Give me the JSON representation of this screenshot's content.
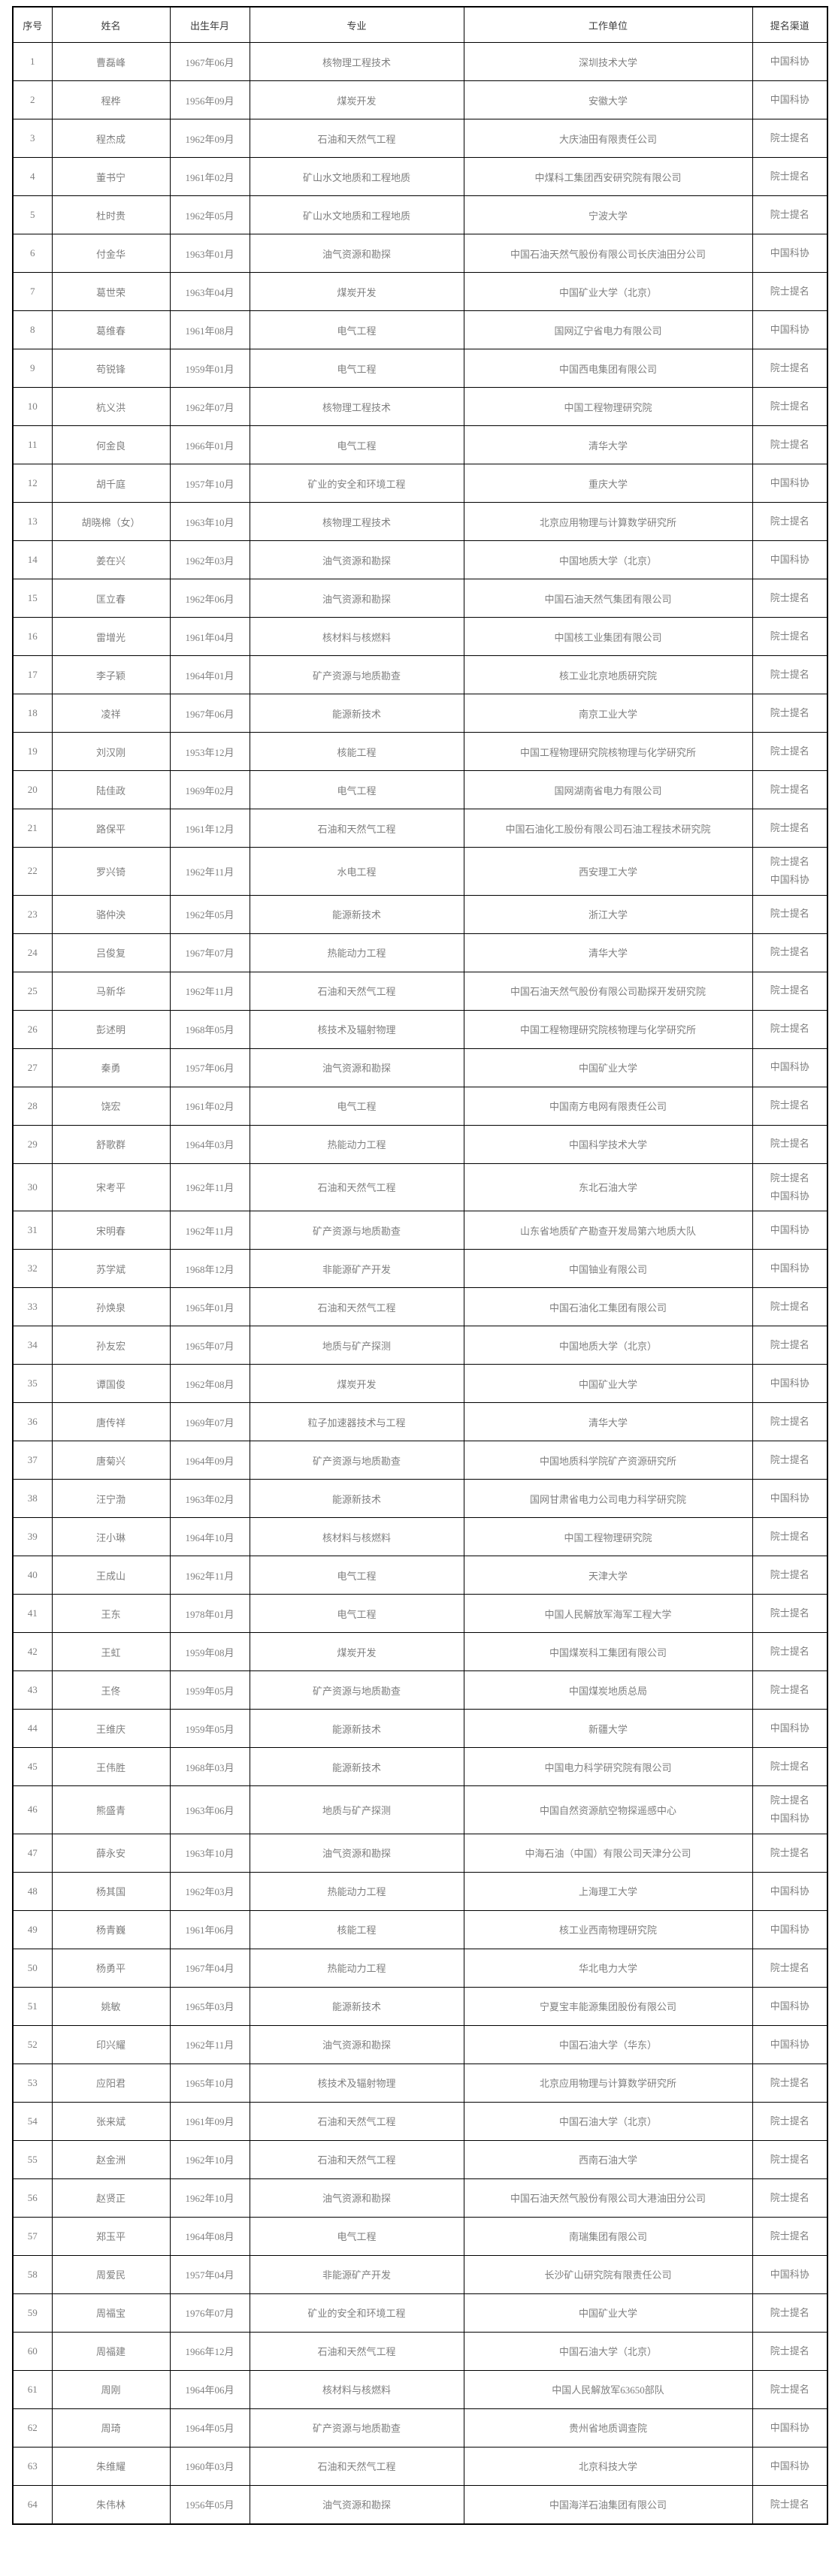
{
  "colors": {
    "background": "#ffffff",
    "grid_border": "#000000",
    "header_text": "#3c3c3c",
    "body_text": "#7f7f7f"
  },
  "table": {
    "columns": [
      "序号",
      "姓名",
      "出生年月",
      "专业",
      "工作单位",
      "提名渠道"
    ],
    "rows": [
      {
        "no": "1",
        "name": "曹磊峰",
        "birth": "1967年06月",
        "major": "核物理工程技术",
        "org": "深圳技术大学",
        "channel": [
          "中国科协"
        ]
      },
      {
        "no": "2",
        "name": "程桦",
        "birth": "1956年09月",
        "major": "煤炭开发",
        "org": "安徽大学",
        "channel": [
          "中国科协"
        ]
      },
      {
        "no": "3",
        "name": "程杰成",
        "birth": "1962年09月",
        "major": "石油和天然气工程",
        "org": "大庆油田有限责任公司",
        "channel": [
          "院士提名"
        ]
      },
      {
        "no": "4",
        "name": "董书宁",
        "birth": "1961年02月",
        "major": "矿山水文地质和工程地质",
        "org": "中煤科工集团西安研究院有限公司",
        "channel": [
          "院士提名"
        ]
      },
      {
        "no": "5",
        "name": "杜时贵",
        "birth": "1962年05月",
        "major": "矿山水文地质和工程地质",
        "org": "宁波大学",
        "channel": [
          "院士提名"
        ]
      },
      {
        "no": "6",
        "name": "付金华",
        "birth": "1963年01月",
        "major": "油气资源和勘探",
        "org": "中国石油天然气股份有限公司长庆油田分公司",
        "channel": [
          "中国科协"
        ]
      },
      {
        "no": "7",
        "name": "葛世荣",
        "birth": "1963年04月",
        "major": "煤炭开发",
        "org": "中国矿业大学（北京）",
        "channel": [
          "院士提名"
        ]
      },
      {
        "no": "8",
        "name": "葛维春",
        "birth": "1961年08月",
        "major": "电气工程",
        "org": "国网辽宁省电力有限公司",
        "channel": [
          "中国科协"
        ]
      },
      {
        "no": "9",
        "name": "苟锐锋",
        "birth": "1959年01月",
        "major": "电气工程",
        "org": "中国西电集团有限公司",
        "channel": [
          "院士提名"
        ]
      },
      {
        "no": "10",
        "name": "杭义洪",
        "birth": "1962年07月",
        "major": "核物理工程技术",
        "org": "中国工程物理研究院",
        "channel": [
          "院士提名"
        ]
      },
      {
        "no": "11",
        "name": "何金良",
        "birth": "1966年01月",
        "major": "电气工程",
        "org": "清华大学",
        "channel": [
          "院士提名"
        ]
      },
      {
        "no": "12",
        "name": "胡千庭",
        "birth": "1957年10月",
        "major": "矿业的安全和环境工程",
        "org": "重庆大学",
        "channel": [
          "中国科协"
        ]
      },
      {
        "no": "13",
        "name": "胡晓棉（女）",
        "birth": "1963年10月",
        "major": "核物理工程技术",
        "org": "北京应用物理与计算数学研究所",
        "channel": [
          "院士提名"
        ]
      },
      {
        "no": "14",
        "name": "姜在兴",
        "birth": "1962年03月",
        "major": "油气资源和勘探",
        "org": "中国地质大学（北京）",
        "channel": [
          "中国科协"
        ]
      },
      {
        "no": "15",
        "name": "匡立春",
        "birth": "1962年06月",
        "major": "油气资源和勘探",
        "org": "中国石油天然气集团有限公司",
        "channel": [
          "院士提名"
        ]
      },
      {
        "no": "16",
        "name": "雷增光",
        "birth": "1961年04月",
        "major": "核材料与核燃料",
        "org": "中国核工业集团有限公司",
        "channel": [
          "院士提名"
        ]
      },
      {
        "no": "17",
        "name": "李子颖",
        "birth": "1964年01月",
        "major": "矿产资源与地质勘查",
        "org": "核工业北京地质研究院",
        "channel": [
          "院士提名"
        ]
      },
      {
        "no": "18",
        "name": "凌祥",
        "birth": "1967年06月",
        "major": "能源新技术",
        "org": "南京工业大学",
        "channel": [
          "院士提名"
        ]
      },
      {
        "no": "19",
        "name": "刘汉刚",
        "birth": "1953年12月",
        "major": "核能工程",
        "org": "中国工程物理研究院核物理与化学研究所",
        "channel": [
          "院士提名"
        ]
      },
      {
        "no": "20",
        "name": "陆佳政",
        "birth": "1969年02月",
        "major": "电气工程",
        "org": "国网湖南省电力有限公司",
        "channel": [
          "院士提名"
        ]
      },
      {
        "no": "21",
        "name": "路保平",
        "birth": "1961年12月",
        "major": "石油和天然气工程",
        "org": "中国石油化工股份有限公司石油工程技术研究院",
        "channel": [
          "院士提名"
        ]
      },
      {
        "no": "22",
        "name": "罗兴锜",
        "birth": "1962年11月",
        "major": "水电工程",
        "org": "西安理工大学",
        "channel": [
          "院士提名",
          "中国科协"
        ]
      },
      {
        "no": "23",
        "name": "骆仲泱",
        "birth": "1962年05月",
        "major": "能源新技术",
        "org": "浙江大学",
        "channel": [
          "院士提名"
        ]
      },
      {
        "no": "24",
        "name": "吕俊复",
        "birth": "1967年07月",
        "major": "热能动力工程",
        "org": "清华大学",
        "channel": [
          "院士提名"
        ]
      },
      {
        "no": "25",
        "name": "马新华",
        "birth": "1962年11月",
        "major": "石油和天然气工程",
        "org": "中国石油天然气股份有限公司勘探开发研究院",
        "channel": [
          "院士提名"
        ]
      },
      {
        "no": "26",
        "name": "彭述明",
        "birth": "1968年05月",
        "major": "核技术及辐射物理",
        "org": "中国工程物理研究院核物理与化学研究所",
        "channel": [
          "院士提名"
        ]
      },
      {
        "no": "27",
        "name": "秦勇",
        "birth": "1957年06月",
        "major": "油气资源和勘探",
        "org": "中国矿业大学",
        "channel": [
          "中国科协"
        ]
      },
      {
        "no": "28",
        "name": "饶宏",
        "birth": "1961年02月",
        "major": "电气工程",
        "org": "中国南方电网有限责任公司",
        "channel": [
          "院士提名"
        ]
      },
      {
        "no": "29",
        "name": "舒歌群",
        "birth": "1964年03月",
        "major": "热能动力工程",
        "org": "中国科学技术大学",
        "channel": [
          "院士提名"
        ]
      },
      {
        "no": "30",
        "name": "宋考平",
        "birth": "1962年11月",
        "major": "石油和天然气工程",
        "org": "东北石油大学",
        "channel": [
          "院士提名",
          "中国科协"
        ]
      },
      {
        "no": "31",
        "name": "宋明春",
        "birth": "1962年11月",
        "major": "矿产资源与地质勘查",
        "org": "山东省地质矿产勘查开发局第六地质大队",
        "channel": [
          "中国科协"
        ]
      },
      {
        "no": "32",
        "name": "苏学斌",
        "birth": "1968年12月",
        "major": "非能源矿产开发",
        "org": "中国铀业有限公司",
        "channel": [
          "中国科协"
        ]
      },
      {
        "no": "33",
        "name": "孙焕泉",
        "birth": "1965年01月",
        "major": "石油和天然气工程",
        "org": "中国石油化工集团有限公司",
        "channel": [
          "院士提名"
        ]
      },
      {
        "no": "34",
        "name": "孙友宏",
        "birth": "1965年07月",
        "major": "地质与矿产探测",
        "org": "中国地质大学（北京）",
        "channel": [
          "院士提名"
        ]
      },
      {
        "no": "35",
        "name": "谭国俊",
        "birth": "1962年08月",
        "major": "煤炭开发",
        "org": "中国矿业大学",
        "channel": [
          "中国科协"
        ]
      },
      {
        "no": "36",
        "name": "唐传祥",
        "birth": "1969年07月",
        "major": "粒子加速器技术与工程",
        "org": "清华大学",
        "channel": [
          "院士提名"
        ]
      },
      {
        "no": "37",
        "name": "唐菊兴",
        "birth": "1964年09月",
        "major": "矿产资源与地质勘查",
        "org": "中国地质科学院矿产资源研究所",
        "channel": [
          "院士提名"
        ]
      },
      {
        "no": "38",
        "name": "汪宁渤",
        "birth": "1963年02月",
        "major": "能源新技术",
        "org": "国网甘肃省电力公司电力科学研究院",
        "channel": [
          "中国科协"
        ]
      },
      {
        "no": "39",
        "name": "汪小琳",
        "birth": "1964年10月",
        "major": "核材料与核燃料",
        "org": "中国工程物理研究院",
        "channel": [
          "院士提名"
        ]
      },
      {
        "no": "40",
        "name": "王成山",
        "birth": "1962年11月",
        "major": "电气工程",
        "org": "天津大学",
        "channel": [
          "院士提名"
        ]
      },
      {
        "no": "41",
        "name": "王东",
        "birth": "1978年01月",
        "major": "电气工程",
        "org": "中国人民解放军海军工程大学",
        "channel": [
          "院士提名"
        ]
      },
      {
        "no": "42",
        "name": "王虹",
        "birth": "1959年08月",
        "major": "煤炭开发",
        "org": "中国煤炭科工集团有限公司",
        "channel": [
          "院士提名"
        ]
      },
      {
        "no": "43",
        "name": "王佟",
        "birth": "1959年05月",
        "major": "矿产资源与地质勘查",
        "org": "中国煤炭地质总局",
        "channel": [
          "院士提名"
        ]
      },
      {
        "no": "44",
        "name": "王维庆",
        "birth": "1959年05月",
        "major": "能源新技术",
        "org": "新疆大学",
        "channel": [
          "中国科协"
        ]
      },
      {
        "no": "45",
        "name": "王伟胜",
        "birth": "1968年03月",
        "major": "能源新技术",
        "org": "中国电力科学研究院有限公司",
        "channel": [
          "院士提名"
        ]
      },
      {
        "no": "46",
        "name": "熊盛青",
        "birth": "1963年06月",
        "major": "地质与矿产探测",
        "org": "中国自然资源航空物探遥感中心",
        "channel": [
          "院士提名",
          "中国科协"
        ]
      },
      {
        "no": "47",
        "name": "薛永安",
        "birth": "1963年10月",
        "major": "油气资源和勘探",
        "org": "中海石油（中国）有限公司天津分公司",
        "channel": [
          "院士提名"
        ]
      },
      {
        "no": "48",
        "name": "杨其国",
        "birth": "1962年03月",
        "major": "热能动力工程",
        "org": "上海理工大学",
        "channel": [
          "中国科协"
        ]
      },
      {
        "no": "49",
        "name": "杨青巍",
        "birth": "1961年06月",
        "major": "核能工程",
        "org": "核工业西南物理研究院",
        "channel": [
          "中国科协"
        ]
      },
      {
        "no": "50",
        "name": "杨勇平",
        "birth": "1967年04月",
        "major": "热能动力工程",
        "org": "华北电力大学",
        "channel": [
          "院士提名"
        ]
      },
      {
        "no": "51",
        "name": "姚敏",
        "birth": "1965年03月",
        "major": "能源新技术",
        "org": "宁夏宝丰能源集团股份有限公司",
        "channel": [
          "中国科协"
        ]
      },
      {
        "no": "52",
        "name": "印兴耀",
        "birth": "1962年11月",
        "major": "油气资源和勘探",
        "org": "中国石油大学（华东）",
        "channel": [
          "中国科协"
        ]
      },
      {
        "no": "53",
        "name": "应阳君",
        "birth": "1965年10月",
        "major": "核技术及辐射物理",
        "org": "北京应用物理与计算数学研究所",
        "channel": [
          "院士提名"
        ]
      },
      {
        "no": "54",
        "name": "张来斌",
        "birth": "1961年09月",
        "major": "石油和天然气工程",
        "org": "中国石油大学（北京）",
        "channel": [
          "院士提名"
        ]
      },
      {
        "no": "55",
        "name": "赵金洲",
        "birth": "1962年10月",
        "major": "石油和天然气工程",
        "org": "西南石油大学",
        "channel": [
          "院士提名"
        ]
      },
      {
        "no": "56",
        "name": "赵贤正",
        "birth": "1962年10月",
        "major": "油气资源和勘探",
        "org": "中国石油天然气股份有限公司大港油田分公司",
        "channel": [
          "院士提名"
        ]
      },
      {
        "no": "57",
        "name": "郑玉平",
        "birth": "1964年08月",
        "major": "电气工程",
        "org": "南瑞集团有限公司",
        "channel": [
          "院士提名"
        ]
      },
      {
        "no": "58",
        "name": "周爱民",
        "birth": "1957年04月",
        "major": "非能源矿产开发",
        "org": "长沙矿山研究院有限责任公司",
        "channel": [
          "中国科协"
        ]
      },
      {
        "no": "59",
        "name": "周福宝",
        "birth": "1976年07月",
        "major": "矿业的安全和环境工程",
        "org": "中国矿业大学",
        "channel": [
          "院士提名"
        ]
      },
      {
        "no": "60",
        "name": "周福建",
        "birth": "1966年12月",
        "major": "石油和天然气工程",
        "org": "中国石油大学（北京）",
        "channel": [
          "院士提名"
        ]
      },
      {
        "no": "61",
        "name": "周刚",
        "birth": "1964年06月",
        "major": "核材料与核燃料",
        "org": "中国人民解放军63650部队",
        "channel": [
          "院士提名"
        ]
      },
      {
        "no": "62",
        "name": "周琦",
        "birth": "1964年05月",
        "major": "矿产资源与地质勘查",
        "org": "贵州省地质调查院",
        "channel": [
          "中国科协"
        ]
      },
      {
        "no": "63",
        "name": "朱维耀",
        "birth": "1960年03月",
        "major": "石油和天然气工程",
        "org": "北京科技大学",
        "channel": [
          "中国科协"
        ]
      },
      {
        "no": "64",
        "name": "朱伟林",
        "birth": "1956年05月",
        "major": "油气资源和勘探",
        "org": "中国海洋石油集团有限公司",
        "channel": [
          "院士提名"
        ]
      }
    ]
  }
}
